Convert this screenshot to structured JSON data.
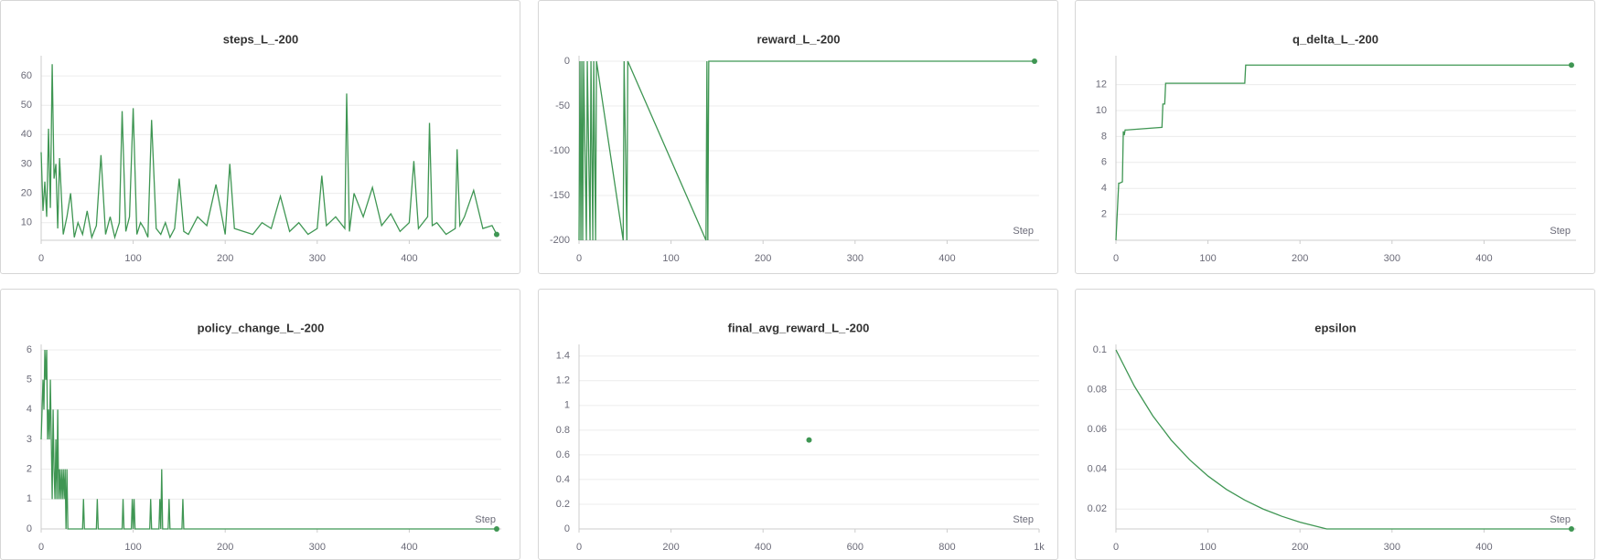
{
  "chart_data": [
    {
      "type": "line",
      "title": "steps_L_-200",
      "color": "#3f9653",
      "x": [
        0,
        2,
        4,
        6,
        8,
        10,
        12,
        14,
        16,
        18,
        20,
        24,
        28,
        32,
        36,
        40,
        45,
        50,
        55,
        60,
        65,
        70,
        75,
        80,
        85,
        88,
        92,
        96,
        100,
        104,
        108,
        112,
        116,
        120,
        125,
        130,
        135,
        140,
        145,
        150,
        155,
        160,
        170,
        180,
        190,
        200,
        205,
        210,
        220,
        230,
        240,
        250,
        260,
        270,
        280,
        290,
        300,
        305,
        310,
        320,
        330,
        332,
        335,
        340,
        350,
        360,
        370,
        380,
        390,
        400,
        405,
        410,
        420,
        422,
        425,
        430,
        440,
        450,
        452,
        455,
        460,
        470,
        480,
        490,
        495
      ],
      "values": [
        34,
        14,
        24,
        12,
        42,
        15,
        64,
        25,
        30,
        8,
        32,
        6,
        12,
        20,
        5,
        10,
        6,
        14,
        5,
        9,
        33,
        6,
        12,
        5,
        10,
        48,
        7,
        12,
        49,
        6,
        10,
        8,
        5,
        45,
        8,
        6,
        10,
        5,
        8,
        25,
        7,
        6,
        12,
        9,
        23,
        6,
        30,
        8,
        7,
        6,
        10,
        8,
        19,
        7,
        10,
        6,
        8,
        26,
        9,
        12,
        8,
        54,
        7,
        20,
        12,
        22,
        9,
        13,
        7,
        10,
        31,
        8,
        12,
        44,
        9,
        10,
        6,
        8,
        35,
        9,
        12,
        21,
        8,
        9,
        6
      ],
      "xlim": [
        0,
        500
      ],
      "xticks": [
        0,
        100,
        200,
        300,
        400
      ],
      "ylim": [
        4,
        65
      ],
      "yticks": [
        10,
        20,
        30,
        40,
        50,
        60
      ],
      "grid": true
    },
    {
      "type": "line",
      "title": "reward_L_-200",
      "color": "#3f9653",
      "x_label": "Step",
      "x": [
        0,
        1,
        2,
        3,
        4,
        5,
        8,
        9,
        12,
        13,
        15,
        16,
        18,
        19,
        48,
        49,
        52,
        53,
        138,
        139,
        140,
        141,
        495
      ],
      "values": [
        -200,
        0,
        -200,
        0,
        -200,
        0,
        -200,
        0,
        -200,
        0,
        -200,
        0,
        -200,
        0,
        -200,
        0,
        -200,
        0,
        -200,
        0,
        -200,
        0,
        0
      ],
      "xlim": [
        0,
        500
      ],
      "xticks": [
        0,
        100,
        200,
        300,
        400
      ],
      "ylim": [
        -200,
        0
      ],
      "yticks": [
        -200,
        -150,
        -100,
        -50,
        0
      ],
      "grid": true
    },
    {
      "type": "line",
      "title": "q_delta_L_-200",
      "color": "#3f9653",
      "x_label": "Step",
      "x": [
        0,
        3,
        4,
        7,
        8,
        9,
        10,
        12,
        50,
        51,
        53,
        54,
        140,
        141,
        495
      ],
      "values": [
        0,
        4.4,
        4.4,
        4.5,
        8.4,
        8.1,
        8.5,
        8.5,
        8.7,
        10.5,
        10.5,
        12.1,
        12.1,
        13.5,
        13.5
      ],
      "xlim": [
        0,
        500
      ],
      "xticks": [
        0,
        100,
        200,
        300,
        400
      ],
      "ylim": [
        0,
        13.8
      ],
      "yticks": [
        2,
        4,
        6,
        8,
        10,
        12
      ],
      "grid": true
    },
    {
      "type": "line",
      "title": "policy_change_L_-200",
      "color": "#3f9653",
      "x_label": "Step",
      "x": [
        0,
        2,
        3,
        4,
        5,
        6,
        7,
        8,
        9,
        10,
        11,
        12,
        13,
        14,
        15,
        16,
        17,
        18,
        19,
        20,
        21,
        22,
        23,
        24,
        25,
        26,
        27,
        28,
        29,
        30,
        45,
        46,
        47,
        60,
        61,
        62,
        88,
        89,
        90,
        98,
        99,
        100,
        101,
        102,
        118,
        119,
        120,
        128,
        129,
        130,
        131,
        132,
        138,
        139,
        140,
        153,
        154,
        155,
        495
      ],
      "values": [
        3,
        5,
        4,
        6,
        5,
        6,
        3,
        4,
        3,
        5,
        3,
        1,
        4,
        2,
        1,
        3,
        1,
        4,
        1,
        2,
        1,
        2,
        1,
        2,
        1,
        2,
        0,
        2,
        0,
        0,
        0,
        1,
        0,
        0,
        1,
        0,
        0,
        1,
        0,
        0,
        1,
        0,
        1,
        0,
        0,
        1,
        0,
        0,
        1,
        0,
        2,
        0,
        0,
        1,
        0,
        0,
        1,
        0,
        0
      ],
      "xlim": [
        0,
        500
      ],
      "xticks": [
        0,
        100,
        200,
        300,
        400
      ],
      "ylim": [
        0,
        6
      ],
      "yticks": [
        0,
        1,
        2,
        3,
        4,
        5,
        6
      ],
      "grid": true
    },
    {
      "type": "scatter",
      "title": "final_avg_reward_L_-200",
      "color": "#3f9653",
      "x_label": "Step",
      "x": [
        500
      ],
      "values": [
        0.72
      ],
      "xlim": [
        0,
        1000
      ],
      "xticks": [
        0,
        200,
        400,
        600,
        800,
        {
          "value": 1000,
          "label": "1k"
        }
      ],
      "ylim": [
        0,
        1.45
      ],
      "yticks": [
        0,
        0.2,
        0.4,
        0.6,
        0.8,
        1,
        1.2,
        1.4
      ],
      "grid": true
    },
    {
      "type": "line",
      "title": "epsilon",
      "color": "#3f9653",
      "x_label": "Step",
      "x": [
        0,
        20,
        40,
        60,
        80,
        100,
        120,
        140,
        160,
        180,
        200,
        229,
        495
      ],
      "values": [
        0.1,
        0.0818,
        0.0669,
        0.0547,
        0.0448,
        0.0366,
        0.0299,
        0.0245,
        0.02,
        0.0164,
        0.0134,
        0.01,
        0.01
      ],
      "xlim": [
        0,
        500
      ],
      "xticks": [
        0,
        100,
        200,
        300,
        400
      ],
      "ylim": [
        0.01,
        0.1
      ],
      "yticks": [
        0.02,
        0.04,
        0.06,
        0.08,
        0.1
      ],
      "grid": true
    }
  ]
}
